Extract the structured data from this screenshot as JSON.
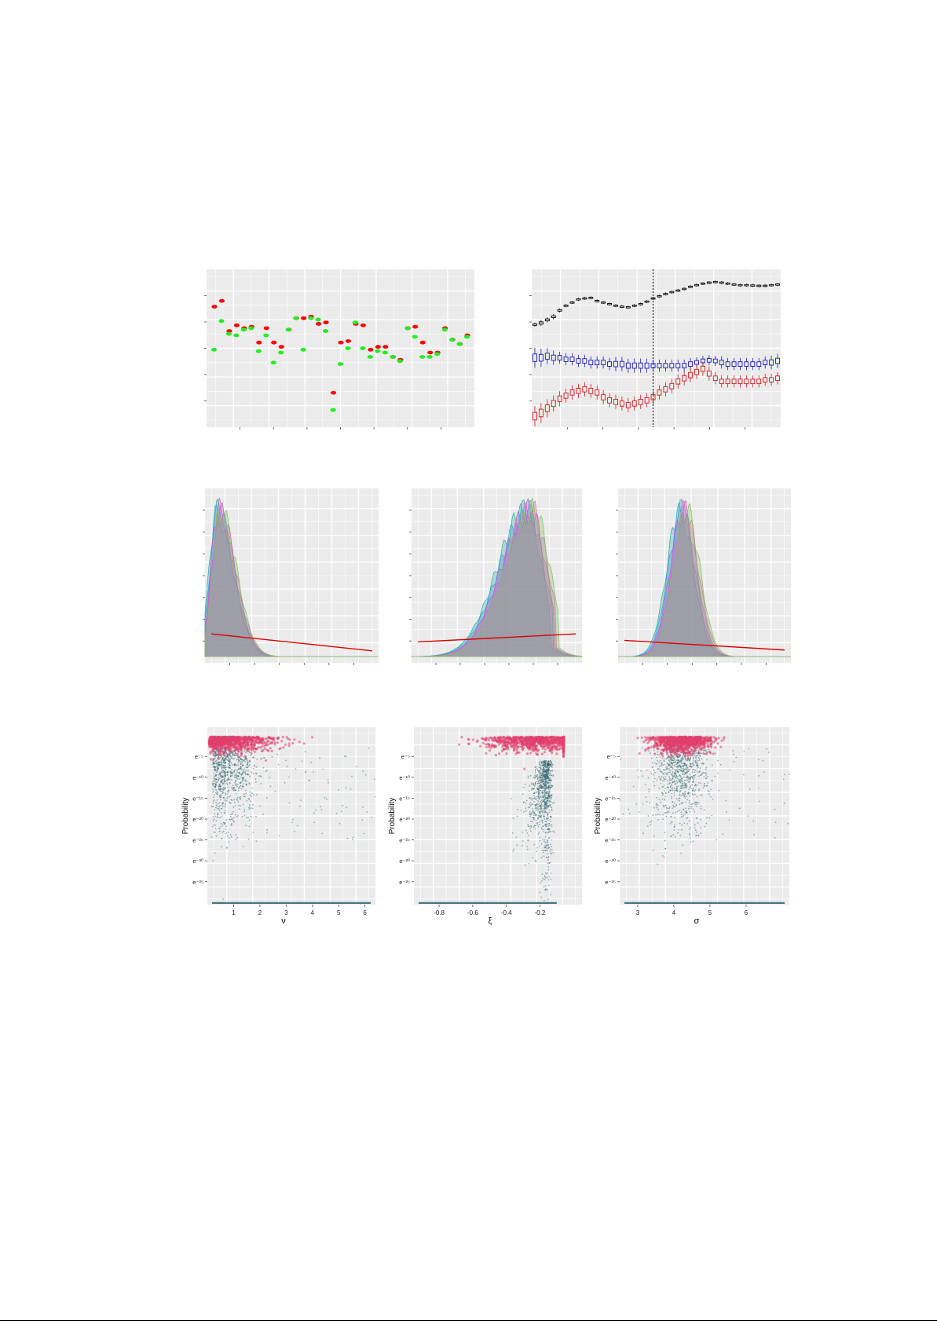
{
  "chart_data": [
    {
      "id": "dot-comparison",
      "type": "scatter",
      "title": "",
      "xlabel": "",
      "ylabel": "",
      "grid": true,
      "xlim": [
        0,
        36
      ],
      "ylim": [
        0,
        5.5
      ],
      "series": [
        {
          "color": "#ff0000",
          "x": [
            1,
            2,
            3,
            4,
            5,
            6,
            7,
            8,
            9,
            10,
            11,
            12,
            13,
            14,
            15,
            16,
            17,
            18,
            19,
            20,
            21,
            22,
            23,
            24,
            25,
            26,
            27,
            28,
            29,
            30,
            31,
            32,
            33,
            34,
            35
          ],
          "y": [
            4.2,
            4.4,
            3.35,
            3.55,
            3.45,
            3.5,
            2.95,
            3.45,
            2.95,
            2.8,
            3.4,
            3.8,
            3.8,
            3.85,
            3.6,
            3.65,
            1.2,
            2.95,
            3.0,
            3.6,
            3.55,
            2.7,
            2.8,
            2.8,
            2.45,
            2.35,
            3.45,
            3.5,
            2.95,
            2.6,
            2.6,
            3.45,
            3.05,
            2.9,
            3.2
          ]
        },
        {
          "color": "#22ee22",
          "x": [
            1,
            2,
            3,
            4,
            5,
            6,
            7,
            8,
            9,
            10,
            11,
            12,
            13,
            14,
            15,
            16,
            17,
            18,
            19,
            20,
            21,
            22,
            23,
            24,
            25,
            26,
            27,
            28,
            29,
            30,
            31,
            32,
            33,
            34,
            35
          ],
          "y": [
            2.7,
            3.7,
            3.25,
            3.2,
            3.4,
            3.45,
            2.65,
            3.2,
            2.25,
            2.6,
            3.4,
            3.8,
            2.7,
            3.8,
            3.75,
            3.35,
            0.6,
            2.2,
            2.75,
            3.65,
            2.75,
            2.45,
            2.65,
            2.6,
            2.45,
            2.3,
            3.45,
            3.15,
            2.45,
            2.45,
            2.55,
            3.4,
            3.05,
            2.9,
            3.15
          ]
        }
      ]
    },
    {
      "id": "trace-boxplots",
      "type": "boxplot",
      "title": "",
      "xlabel": "",
      "ylabel": "",
      "grid": true,
      "xlim": [
        0,
        40
      ],
      "ylim": [
        0,
        5
      ],
      "vline_x": 19.5,
      "series": [
        {
          "color": "#000000",
          "values": [
            3.25,
            3.3,
            3.4,
            3.5,
            3.7,
            3.85,
            3.95,
            4.05,
            4.08,
            4.1,
            4.0,
            3.95,
            3.9,
            3.85,
            3.82,
            3.8,
            3.85,
            3.9,
            3.98,
            4.08,
            4.15,
            4.22,
            4.28,
            4.33,
            4.38,
            4.45,
            4.5,
            4.55,
            4.58,
            4.6,
            4.58,
            4.55,
            4.52,
            4.5,
            4.5,
            4.49,
            4.48,
            4.48,
            4.5,
            4.52
          ],
          "spread": [
            0.04,
            0.06,
            0.05,
            0.05,
            0.04,
            0.03,
            0.03,
            0.03,
            0.03,
            0.03,
            0.03,
            0.03,
            0.03,
            0.03,
            0.03,
            0.03,
            0.03,
            0.03,
            0.03,
            0.03,
            0.03,
            0.03,
            0.03,
            0.03,
            0.03,
            0.03,
            0.03,
            0.03,
            0.03,
            0.03,
            0.03,
            0.03,
            0.03,
            0.03,
            0.03,
            0.03,
            0.03,
            0.03,
            0.03,
            0.03
          ]
        },
        {
          "color": "#1a1ab8",
          "values": [
            2.2,
            2.2,
            2.25,
            2.2,
            2.2,
            2.15,
            2.15,
            2.1,
            2.1,
            2.05,
            2.05,
            2.05,
            2.0,
            2.0,
            2.0,
            1.95,
            1.95,
            1.95,
            1.95,
            1.95,
            1.95,
            1.95,
            1.95,
            1.95,
            1.95,
            2.0,
            2.05,
            2.1,
            2.12,
            2.1,
            2.05,
            2.0,
            2.0,
            2.0,
            2.0,
            2.0,
            2.0,
            2.05,
            2.05,
            2.1
          ],
          "spread": [
            0.2,
            0.18,
            0.16,
            0.14,
            0.12,
            0.12,
            0.12,
            0.12,
            0.12,
            0.12,
            0.12,
            0.12,
            0.12,
            0.14,
            0.14,
            0.14,
            0.14,
            0.14,
            0.14,
            0.12,
            0.12,
            0.12,
            0.12,
            0.12,
            0.12,
            0.12,
            0.1,
            0.1,
            0.1,
            0.1,
            0.12,
            0.12,
            0.12,
            0.12,
            0.12,
            0.12,
            0.12,
            0.12,
            0.14,
            0.14
          ]
        },
        {
          "color": "#d21a1a",
          "values": [
            0.35,
            0.45,
            0.6,
            0.75,
            0.9,
            1.0,
            1.1,
            1.15,
            1.2,
            1.15,
            1.1,
            0.95,
            0.85,
            0.8,
            0.75,
            0.7,
            0.75,
            0.8,
            0.85,
            0.95,
            1.1,
            1.2,
            1.3,
            1.45,
            1.55,
            1.65,
            1.75,
            1.85,
            1.7,
            1.55,
            1.45,
            1.45,
            1.45,
            1.45,
            1.45,
            1.45,
            1.45,
            1.5,
            1.5,
            1.55
          ],
          "spread": [
            0.2,
            0.2,
            0.18,
            0.16,
            0.15,
            0.14,
            0.14,
            0.14,
            0.14,
            0.14,
            0.14,
            0.14,
            0.14,
            0.14,
            0.14,
            0.14,
            0.14,
            0.14,
            0.14,
            0.14,
            0.14,
            0.14,
            0.14,
            0.14,
            0.14,
            0.14,
            0.14,
            0.14,
            0.14,
            0.12,
            0.12,
            0.12,
            0.12,
            0.12,
            0.12,
            0.12,
            0.12,
            0.12,
            0.12,
            0.12
          ]
        }
      ]
    },
    {
      "id": "density-nu",
      "type": "area",
      "xlim": [
        0,
        6.5
      ],
      "ylim": [
        0,
        1
      ],
      "mode": 0.5,
      "width": 0.28,
      "skew": "right",
      "prior_line": {
        "color": "#dd0000",
        "y_start": 0.14,
        "y_end": 0.035
      },
      "fill_colors": [
        "#28b09a",
        "#3aa0d8",
        "#b060d0",
        "#e060c0",
        "#7fc05a"
      ]
    },
    {
      "id": "density-xi",
      "type": "area",
      "xlim": [
        -1.0,
        0.05
      ],
      "ylim": [
        0,
        1
      ],
      "mode": -0.27,
      "width": 0.1,
      "skew": "left",
      "prior_line": {
        "color": "#dd0000",
        "y_start": 0.09,
        "y_end": 0.14
      },
      "fill_colors": [
        "#28b09a",
        "#3aa0d8",
        "#b060d0",
        "#e060c0",
        "#7fc05a"
      ]
    },
    {
      "id": "density-sigma",
      "type": "area",
      "xlim": [
        2.3,
        7.2
      ],
      "ylim": [
        0,
        1
      ],
      "mode": 4.15,
      "width": 0.38,
      "skew": "none",
      "prior_line": {
        "color": "#dd0000",
        "y_start": 0.1,
        "y_end": 0.04
      },
      "fill_colors": [
        "#28b09a",
        "#3aa0d8",
        "#b060d0",
        "#e060c0",
        "#7fc05a"
      ]
    },
    {
      "id": "prob-nu",
      "type": "scatter",
      "xlabel": "ν",
      "ylabel": "Probability",
      "xlim": [
        0,
        6.4
      ],
      "ylim": [
        -40.5,
        2
      ],
      "xticks": [
        "1",
        "2",
        "3",
        "4",
        "5",
        "6"
      ],
      "xtick_values": [
        1,
        2,
        3,
        4,
        5,
        6
      ],
      "ytick_labels": [
        "e⁻⁵",
        "e⁻¹⁰",
        "e⁻¹⁵",
        "e⁻²⁰",
        "e⁻²⁵",
        "e⁻³⁰",
        "e⁻³⁵"
      ],
      "ytick_values": [
        -5,
        -10,
        -15,
        -20,
        -25,
        -30,
        -35
      ],
      "pink_color": "#e0406e",
      "teal_color": "#1e5a64",
      "cloud_center": 0.7
    },
    {
      "id": "prob-xi",
      "type": "scatter",
      "xlabel": "ξ",
      "ylabel": "Probability",
      "xlim": [
        -0.95,
        0.05
      ],
      "ylim": [
        -40.5,
        2
      ],
      "xticks": [
        "-0.8",
        "-0.6",
        "-0.4",
        "-0.2"
      ],
      "xtick_values": [
        -0.8,
        -0.6,
        -0.4,
        -0.2
      ],
      "ytick_labels": [
        "e⁻⁵",
        "e⁻¹⁰",
        "e⁻¹⁵",
        "e⁻²⁰",
        "e⁻²⁵",
        "e⁻³⁰",
        "e⁻³⁵"
      ],
      "ytick_values": [
        -5,
        -10,
        -15,
        -20,
        -25,
        -30,
        -35
      ],
      "pink_color": "#e0406e",
      "teal_color": "#1e5a64",
      "cloud_center": -0.2
    },
    {
      "id": "prob-sigma",
      "type": "scatter",
      "xlabel": "σ",
      "ylabel": "Probability",
      "xlim": [
        2.5,
        7.2
      ],
      "ylim": [
        -40.5,
        2
      ],
      "xticks": [
        "3",
        "4",
        "5",
        "6"
      ],
      "xtick_values": [
        3,
        4,
        5,
        6
      ],
      "ytick_labels": [
        "e⁻⁵",
        "e⁻¹⁰",
        "e⁻¹⁵",
        "e⁻²⁰",
        "e⁻²⁵",
        "e⁻³⁰",
        "e⁻³⁵"
      ],
      "ytick_values": [
        -5,
        -10,
        -15,
        -20,
        -25,
        -30,
        -35
      ],
      "pink_color": "#e0406e",
      "teal_color": "#1e5a64",
      "cloud_center": 4.2
    }
  ]
}
